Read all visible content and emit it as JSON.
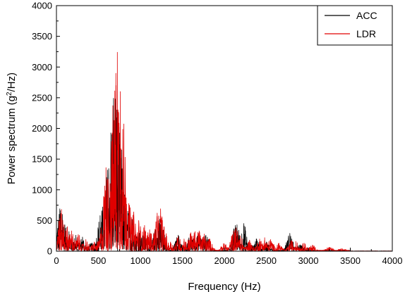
{
  "chart_data": {
    "type": "line",
    "xlabel": "Frequency (Hz)",
    "ylabel_prefix": "Power spectrum (g",
    "ylabel_sup": "2",
    "ylabel_suffix": "/Hz)",
    "xlim": [
      0,
      4000
    ],
    "ylim": [
      0,
      4000
    ],
    "xticks": [
      "0",
      "500",
      "1000",
      "1500",
      "2000",
      "2500",
      "3000",
      "3500",
      "4000"
    ],
    "yticks": [
      "0",
      "500",
      "1000",
      "1500",
      "2000",
      "2500",
      "3000",
      "3500",
      "4000"
    ],
    "grid": false,
    "legend_position": "top-right",
    "series": [
      {
        "name": "ACC",
        "color": "#000000",
        "peaks": [
          [
            40,
            690
          ],
          [
            70,
            600
          ],
          [
            100,
            430
          ],
          [
            150,
            320
          ],
          [
            230,
            260
          ],
          [
            310,
            230
          ],
          [
            420,
            130
          ],
          [
            520,
            580
          ],
          [
            550,
            720
          ],
          [
            620,
            950
          ],
          [
            660,
            1900
          ],
          [
            680,
            2490
          ],
          [
            700,
            2480
          ],
          [
            720,
            2300
          ],
          [
            740,
            1400
          ],
          [
            760,
            1200
          ],
          [
            800,
            900
          ],
          [
            850,
            650
          ],
          [
            900,
            520
          ],
          [
            980,
            380
          ],
          [
            1050,
            300
          ],
          [
            1180,
            350
          ],
          [
            1230,
            520
          ],
          [
            1260,
            410
          ],
          [
            1450,
            260
          ],
          [
            1600,
            280
          ],
          [
            1700,
            300
          ],
          [
            1780,
            260
          ],
          [
            2130,
            420
          ],
          [
            2150,
            430
          ],
          [
            2230,
            450
          ],
          [
            2380,
            200
          ],
          [
            2500,
            150
          ],
          [
            2780,
            290
          ],
          [
            2900,
            100
          ]
        ]
      },
      {
        "name": "LDR",
        "color": "#e00000",
        "peaks": [
          [
            30,
            500
          ],
          [
            60,
            680
          ],
          [
            90,
            430
          ],
          [
            130,
            400
          ],
          [
            180,
            330
          ],
          [
            260,
            270
          ],
          [
            350,
            190
          ],
          [
            450,
            150
          ],
          [
            500,
            160
          ],
          [
            560,
            600
          ],
          [
            590,
            1360
          ],
          [
            610,
            1180
          ],
          [
            640,
            1100
          ],
          [
            670,
            1650
          ],
          [
            690,
            2000
          ],
          [
            710,
            2700
          ],
          [
            725,
            3240
          ],
          [
            740,
            2250
          ],
          [
            760,
            2600
          ],
          [
            780,
            1000
          ],
          [
            800,
            950
          ],
          [
            830,
            870
          ],
          [
            870,
            750
          ],
          [
            920,
            640
          ],
          [
            980,
            500
          ],
          [
            1050,
            420
          ],
          [
            1110,
            350
          ],
          [
            1200,
            620
          ],
          [
            1240,
            690
          ],
          [
            1280,
            400
          ],
          [
            1360,
            150
          ],
          [
            1450,
            240
          ],
          [
            1520,
            200
          ],
          [
            1600,
            300
          ],
          [
            1650,
            320
          ],
          [
            1700,
            330
          ],
          [
            1760,
            280
          ],
          [
            1820,
            200
          ],
          [
            2000,
            120
          ],
          [
            2110,
            330
          ],
          [
            2140,
            380
          ],
          [
            2190,
            250
          ],
          [
            2300,
            180
          ],
          [
            2420,
            200
          ],
          [
            2480,
            220
          ],
          [
            2550,
            190
          ],
          [
            2650,
            130
          ],
          [
            2800,
            170
          ],
          [
            2850,
            160
          ],
          [
            2950,
            130
          ],
          [
            3050,
            100
          ],
          [
            3250,
            60
          ],
          [
            3400,
            40
          ]
        ]
      }
    ]
  }
}
